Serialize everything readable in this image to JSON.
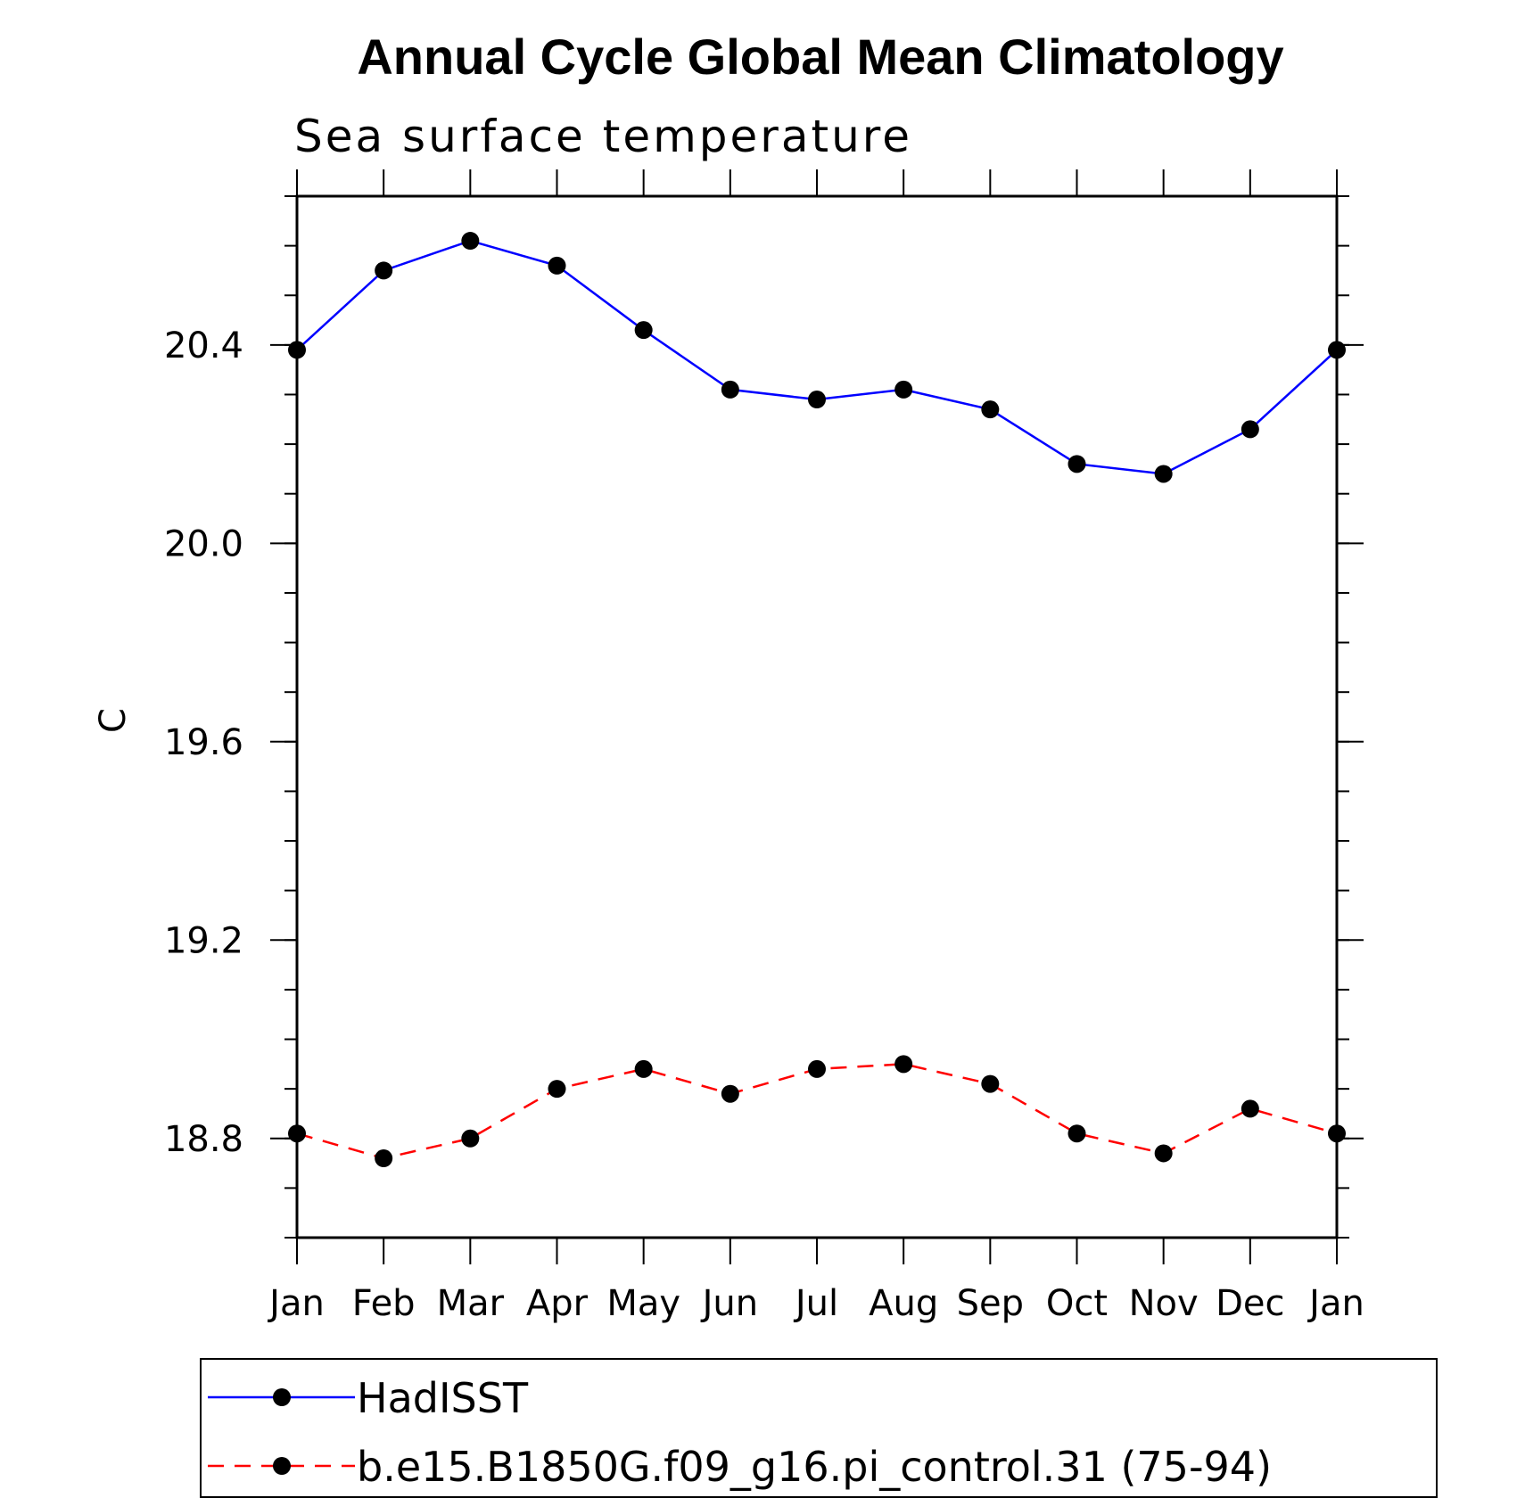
{
  "chart_data": {
    "type": "line",
    "title": "Annual Cycle Global Mean Climatology",
    "subtitle": "Sea surface temperature",
    "xlabel": "",
    "ylabel": "C",
    "categories": [
      "Jan",
      "Feb",
      "Mar",
      "Apr",
      "May",
      "Jun",
      "Jul",
      "Aug",
      "Sep",
      "Oct",
      "Nov",
      "Dec",
      "Jan"
    ],
    "ylim": [
      18.6,
      20.7
    ],
    "yticks": [
      18.8,
      19.2,
      19.6,
      20.0,
      20.4
    ],
    "ytick_labels": [
      "18.8",
      "19.2",
      "19.6",
      "20.0",
      "20.4"
    ],
    "grid": false,
    "legend_position": "bottom",
    "series": [
      {
        "name": "HadISST",
        "color": "#0000ff",
        "style": "solid",
        "values": [
          20.39,
          20.55,
          20.61,
          20.56,
          20.43,
          20.31,
          20.29,
          20.31,
          20.27,
          20.16,
          20.14,
          20.23,
          20.39
        ]
      },
      {
        "name": "b.e15.B1850G.f09_g16.pi_control.31 (75-94)",
        "color": "#ff0000",
        "style": "dashed",
        "values": [
          18.81,
          18.76,
          18.8,
          18.9,
          18.94,
          18.89,
          18.94,
          18.95,
          18.91,
          18.81,
          18.77,
          18.86,
          18.81
        ]
      }
    ]
  }
}
